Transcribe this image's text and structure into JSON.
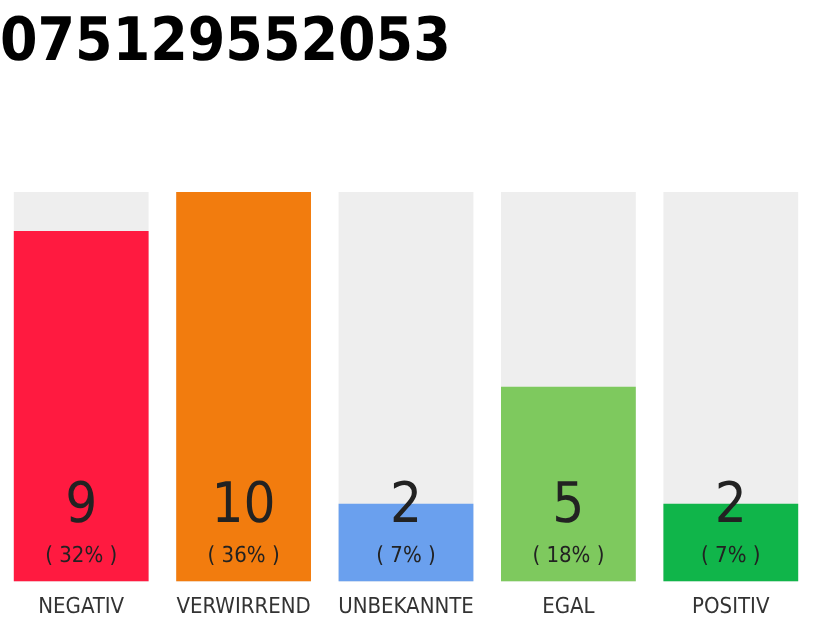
{
  "chart_data": {
    "type": "bar",
    "title": "075129552053",
    "categories": [
      "NEGATIV",
      "VERWIRREND",
      "UNBEKANNTE",
      "EGAL",
      "POSITIV"
    ],
    "values": [
      9,
      10,
      2,
      5,
      2
    ],
    "colors": [
      "#ff1a40",
      "#f27c0e",
      "#6aa0ee",
      "#7ec95e",
      "#10b54a"
    ],
    "ylim": [
      0,
      10
    ],
    "data_labels": true,
    "tick_labels": "x",
    "grid": false,
    "legend": false,
    "annotations": [
      "( 32% )",
      "( 36% )",
      "( 7% )",
      "( 18% )",
      "( 7% )"
    ]
  }
}
